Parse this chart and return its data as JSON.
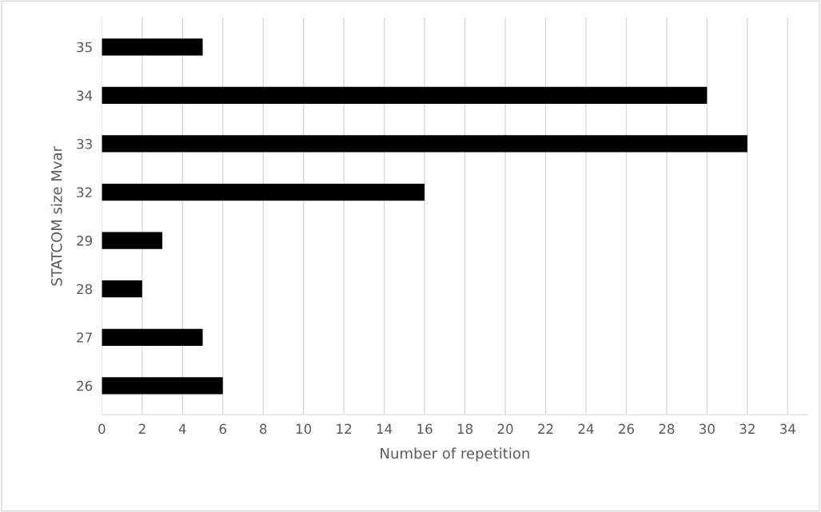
{
  "chart_data": {
    "type": "bar",
    "orientation": "horizontal",
    "xlabel": "Number of repetition",
    "ylabel": "STATCOM size Mvar",
    "categories": [
      "35",
      "34",
      "33",
      "32",
      "29",
      "28",
      "27",
      "26"
    ],
    "values": [
      5,
      30,
      32,
      16,
      3,
      2,
      5,
      6
    ],
    "color": "#000000",
    "xlim": [
      0,
      35
    ],
    "xticks": [
      0,
      2,
      4,
      6,
      8,
      10,
      12,
      14,
      16,
      18,
      20,
      22,
      24,
      26,
      28,
      30,
      32,
      34
    ],
    "grid": "x"
  }
}
